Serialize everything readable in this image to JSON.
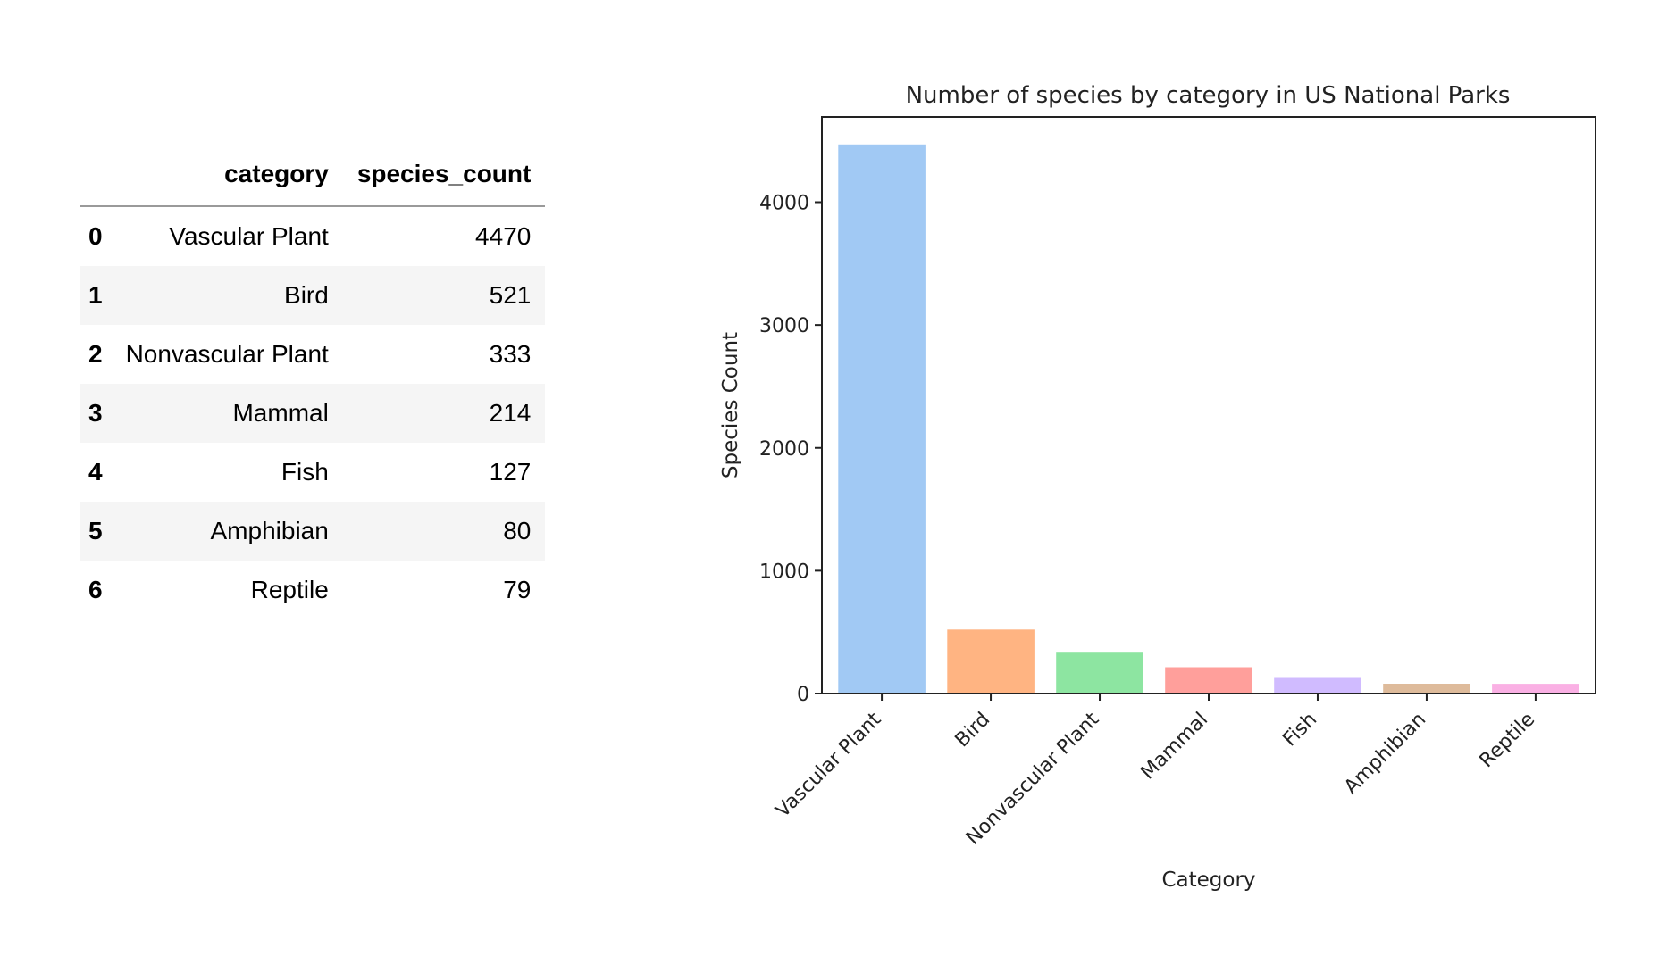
{
  "table": {
    "index_header": "",
    "columns": [
      "category",
      "species_count"
    ],
    "rows": [
      {
        "index": "0",
        "category": "Vascular Plant",
        "species_count": "4470"
      },
      {
        "index": "1",
        "category": "Bird",
        "species_count": "521"
      },
      {
        "index": "2",
        "category": "Nonvascular Plant",
        "species_count": "333"
      },
      {
        "index": "3",
        "category": "Mammal",
        "species_count": "214"
      },
      {
        "index": "4",
        "category": "Fish",
        "species_count": "127"
      },
      {
        "index": "5",
        "category": "Amphibian",
        "species_count": "80"
      },
      {
        "index": "6",
        "category": "Reptile",
        "species_count": "79"
      }
    ]
  },
  "chart_data": {
    "type": "bar",
    "title": "Number of species by category in US National Parks",
    "xlabel": "Category",
    "ylabel": "Species Count",
    "categories": [
      "Vascular Plant",
      "Bird",
      "Nonvascular Plant",
      "Mammal",
      "Fish",
      "Amphibian",
      "Reptile"
    ],
    "values": [
      4470,
      521,
      333,
      214,
      127,
      80,
      79
    ],
    "colors": [
      "#a1c9f4",
      "#ffb482",
      "#8de5a1",
      "#ff9f9b",
      "#d0bbff",
      "#debb9b",
      "#fab0e4"
    ],
    "ylim": [
      0,
      4694
    ],
    "yticks": [
      0,
      1000,
      2000,
      3000,
      4000
    ],
    "grid": false,
    "legend": "none"
  }
}
